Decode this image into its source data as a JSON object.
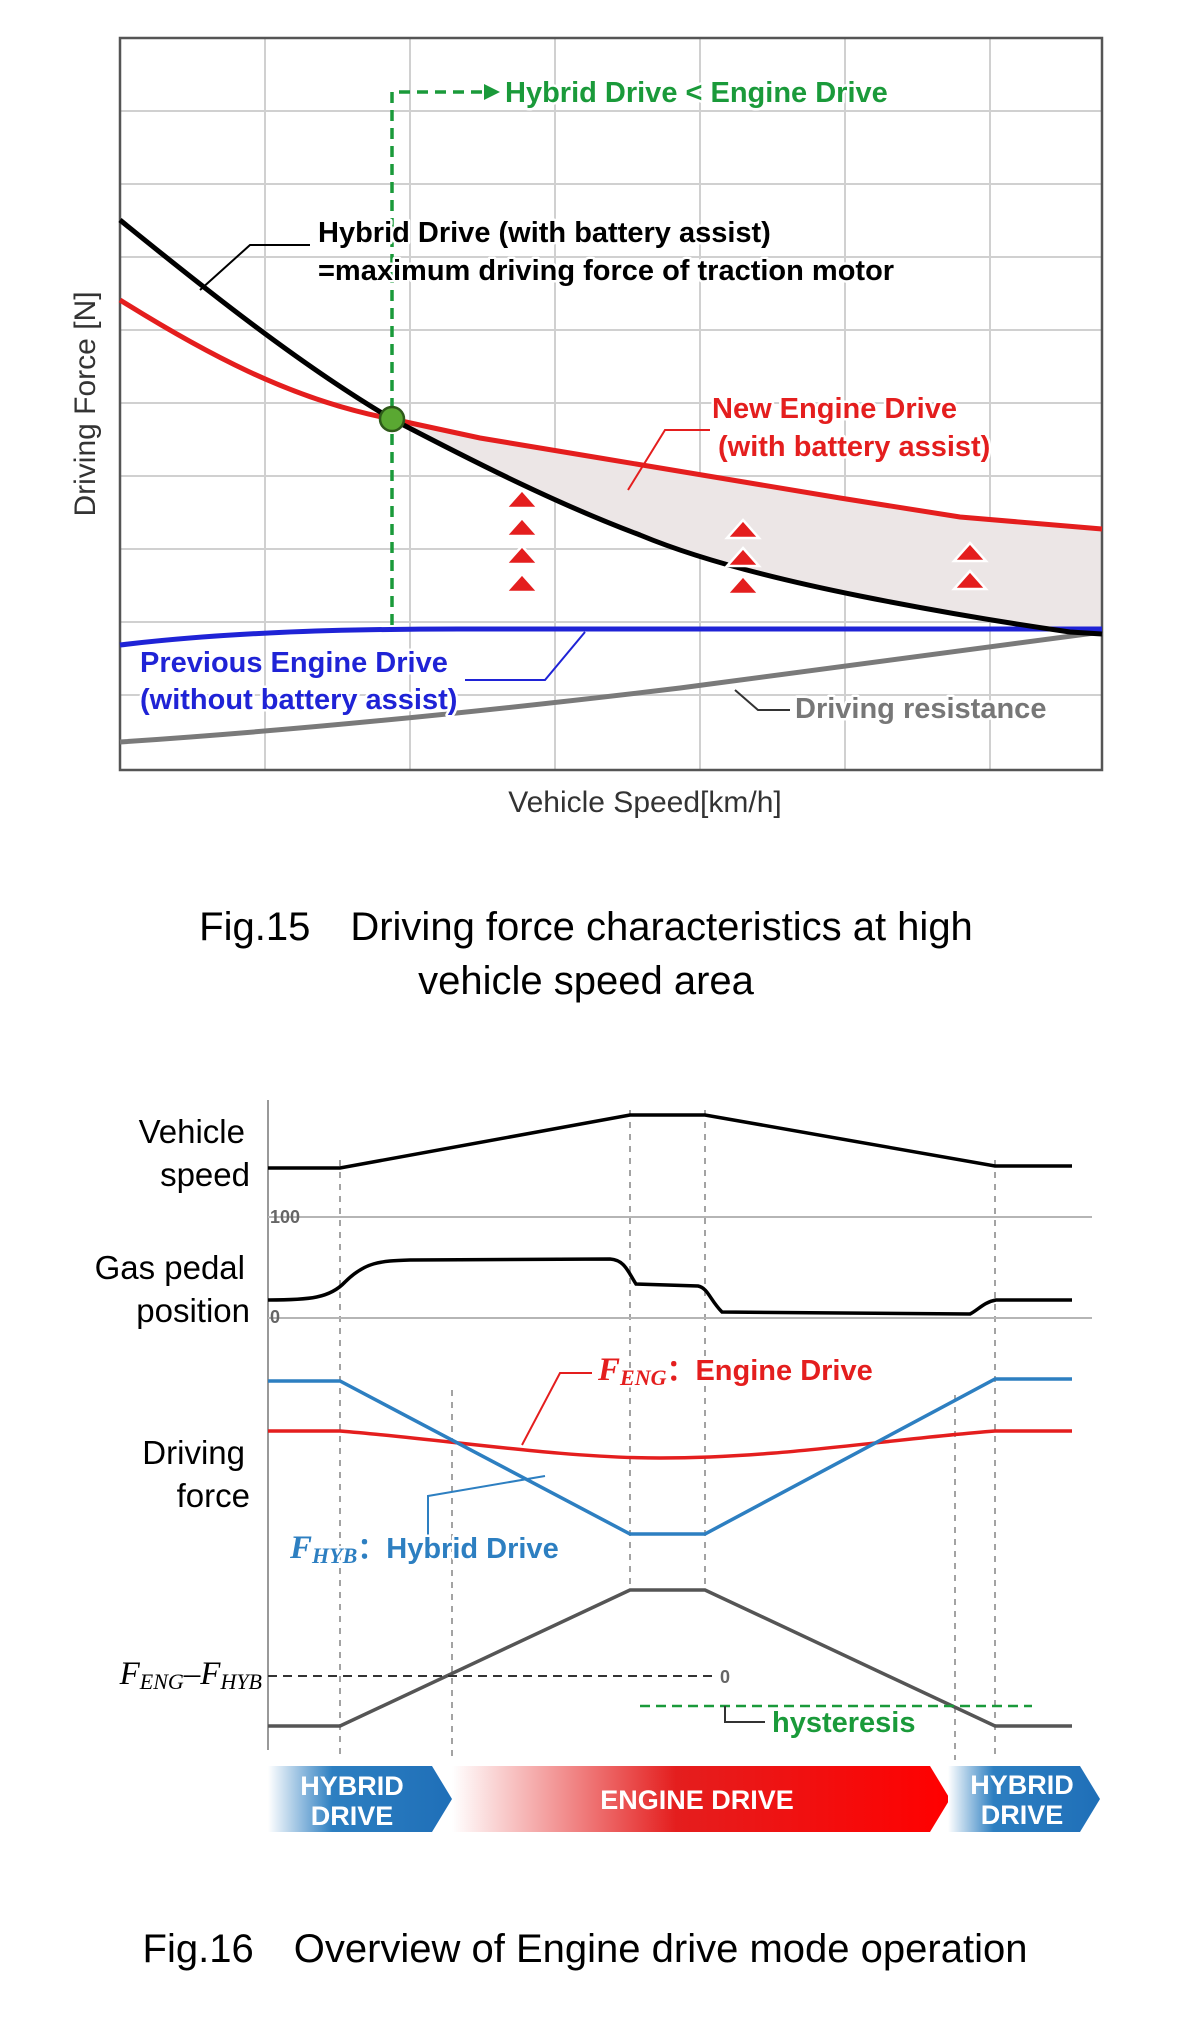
{
  "chart_data": [
    {
      "type": "line",
      "xlabel": "Vehicle Speed[km/h]",
      "ylabel": "Driving Force [N]",
      "series": [
        {
          "name": "Hybrid Drive (with battery assist)",
          "color": "#000000"
        },
        {
          "name": "New Engine Drive (with battery assist)",
          "color": "#e41e1e"
        },
        {
          "name": "Previous Engine Drive (without battery assist)",
          "color": "#1f23d6"
        },
        {
          "name": "Driving resistance",
          "color": "#7a7a7a"
        }
      ],
      "annotations": {
        "hybrid_top": "Hybrid Drive < Engine Drive",
        "hybrid_line1": "Hybrid Drive (with battery assist)",
        "hybrid_line2": "=maximum driving force of traction motor",
        "new_engine_line1": "New Engine Drive",
        "new_engine_line2": "(with battery assist)",
        "prev_engine_line1": "Previous Engine Drive",
        "prev_engine_line2": "(without battery assist)",
        "resistance": "Driving resistance"
      },
      "colors": {
        "hybrid_top": "#1a9a3a",
        "intersection_marker": "#5aa832",
        "gain_region": "#ece6e6",
        "arrow": "#e41e1e"
      },
      "grid": true,
      "caption_line1": "Fig.15　Driving force characteristics at high",
      "caption_line2": "vehicle speed area"
    },
    {
      "type": "line",
      "rows": {
        "speed_line1": "Vehicle",
        "speed_line2": "speed",
        "pedal_line1": "Gas pedal",
        "pedal_line2": "position",
        "force_line1": "Driving",
        "force_line2": "force",
        "diff_symbol_main1": "F",
        "diff_symbol_sub1": "ENG",
        "diff_symbol_main2": "–F",
        "diff_symbol_sub2": "HYB"
      },
      "ticks": {
        "pedal_max": "100",
        "pedal_min": "0",
        "diff_zero": "0"
      },
      "legend": {
        "eng_sym": "F",
        "eng_sub": "ENG",
        "eng_label": "：Engine Drive",
        "hyb_sym": "F",
        "hyb_sub": "HYB",
        "hyb_label": "：Hybrid Drive",
        "hysteresis": "hysteresis"
      },
      "colors": {
        "engine": "#e41e1e",
        "hybrid": "#2d7fc1",
        "diff": "#555555",
        "hysteresis": "#1a9a3a"
      },
      "bands": {
        "left_line1": "HYBRID",
        "left_line2": "DRIVE",
        "middle": "ENGINE DRIVE",
        "right_line1": "HYBRID",
        "right_line2": "DRIVE"
      },
      "caption": "Fig.16　Overview of Engine drive mode operation"
    }
  ]
}
